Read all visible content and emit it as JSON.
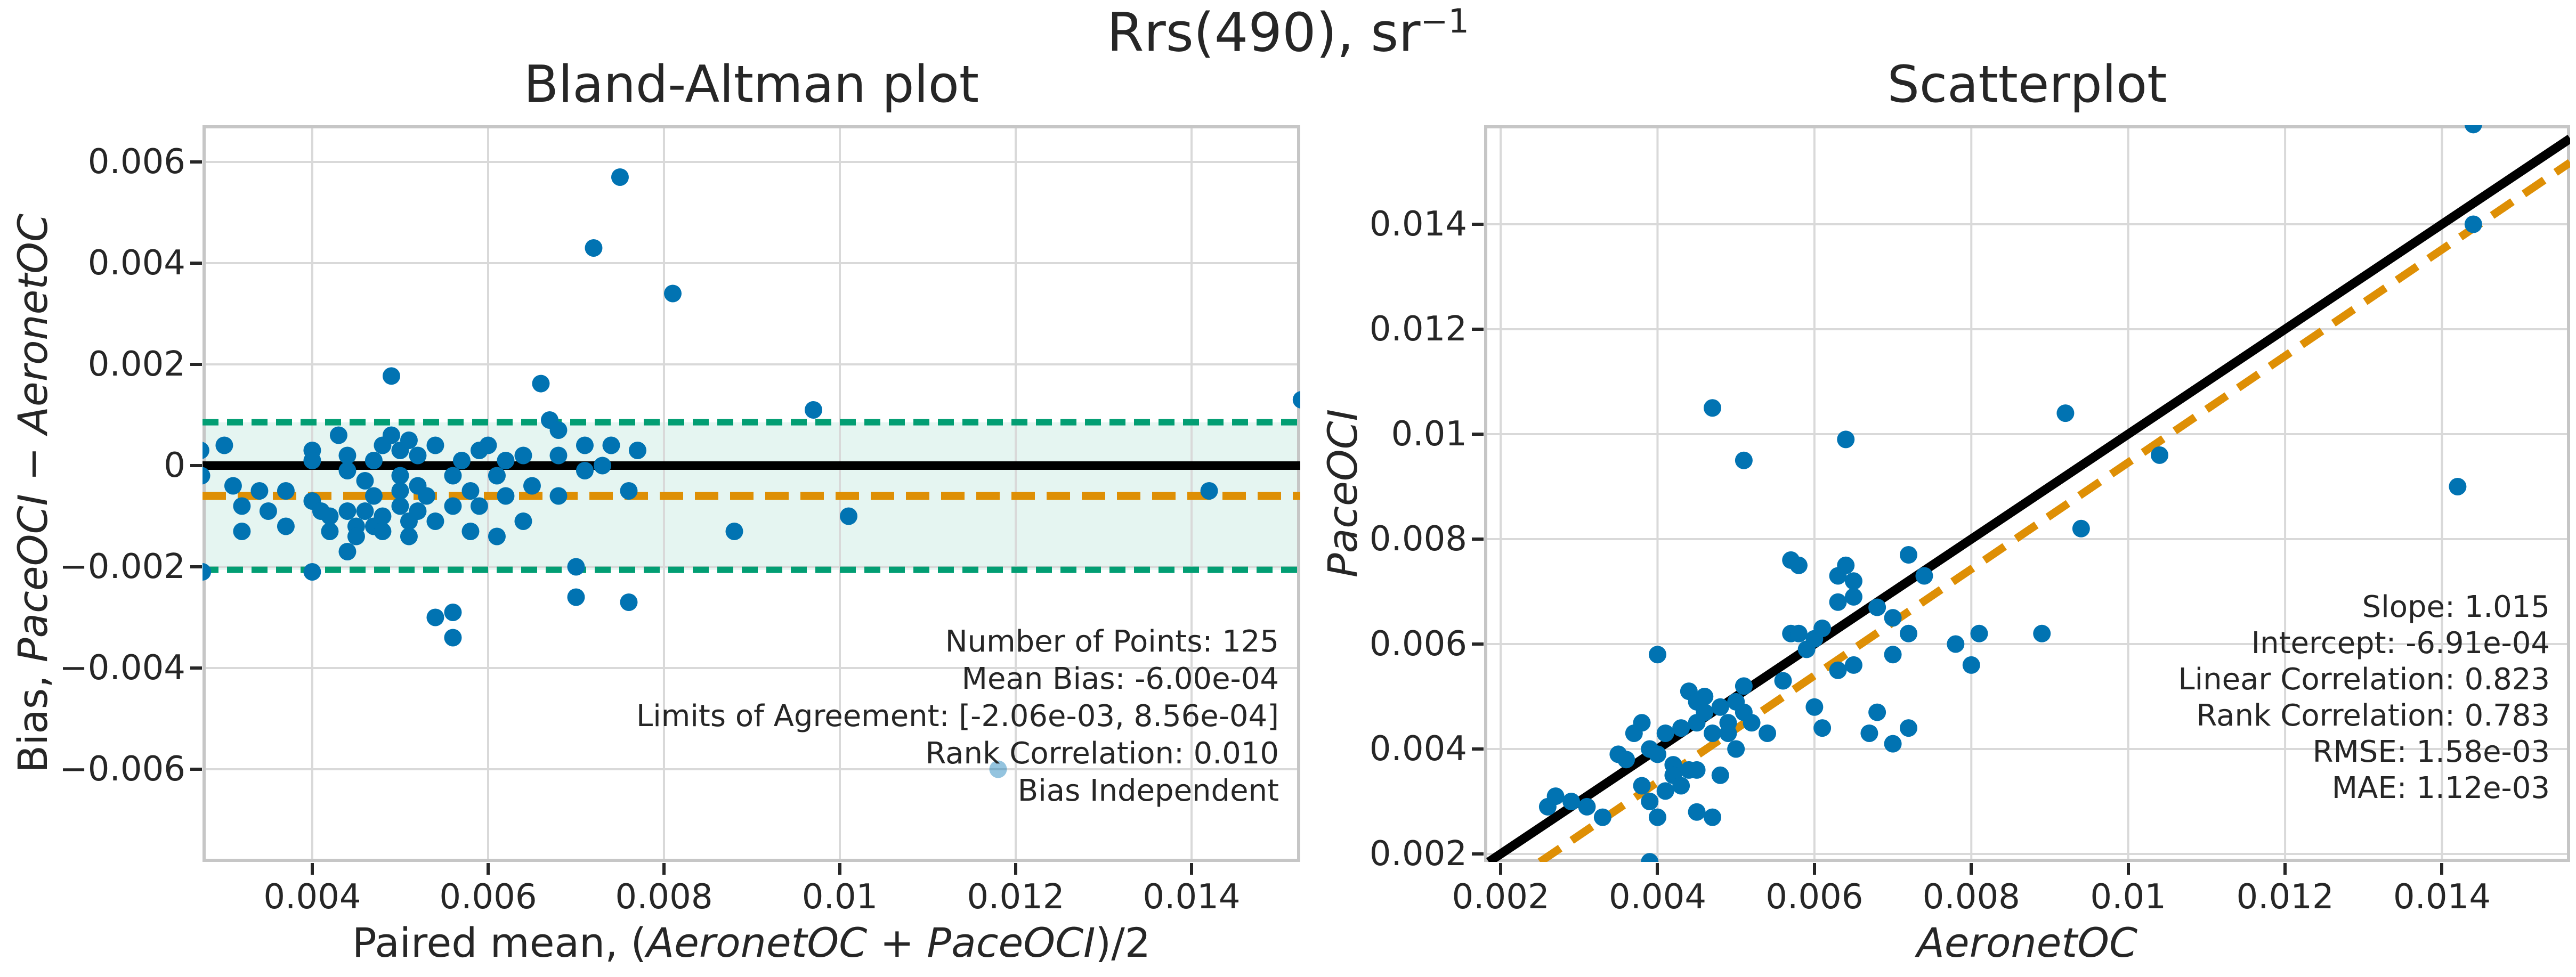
{
  "suptitle": {
    "base": "Rrs(490), sr",
    "sup": "−1"
  },
  "colors": {
    "points": "#0173B2",
    "faint_point": "rgba(1,115,178,0.42)",
    "identity": "#000000",
    "regression": "#DE8F05",
    "mean_bias": "#DE8F05",
    "loa": "#029E73",
    "loa_band": "rgba(2,158,115,0.10)",
    "grid": "#d9d9d9",
    "spine": "#c6c6c6",
    "text": "#262626"
  },
  "chart_data": [
    {
      "type": "scatter",
      "title": "Bland-Altman plot",
      "xlabel_segments": [
        {
          "text": "Paired mean, (",
          "italic": false
        },
        {
          "text": "AeronetOC",
          "italic": true
        },
        {
          "text": " + ",
          "italic": false
        },
        {
          "text": "PaceOCI",
          "italic": true
        },
        {
          "text": ")/2",
          "italic": false
        }
      ],
      "ylabel_segments": [
        {
          "text": "Bias, ",
          "italic": false
        },
        {
          "text": "PaceOCI",
          "italic": true
        },
        {
          "text": " − ",
          "italic": false
        },
        {
          "text": "AeronetOC",
          "italic": true
        }
      ],
      "xlim": [
        0.002752,
        0.015236
      ],
      "ylim": [
        -0.007832,
        0.006726
      ],
      "xticks": {
        "values": [
          0.004,
          0.006,
          0.008,
          0.01,
          0.012,
          0.014
        ],
        "labels": [
          "0.004",
          "0.006",
          "0.008",
          "0.01",
          "0.012",
          "0.014"
        ]
      },
      "yticks": {
        "values": [
          0.006,
          0.004,
          0.002,
          0,
          -0.002,
          -0.004,
          -0.006
        ],
        "labels": [
          "0.006",
          "0.004",
          "0.002",
          "0",
          "−0.002",
          "−0.004",
          "−0.006"
        ]
      },
      "grid": true,
      "legend": "none",
      "band": {
        "ymin": -0.00206,
        "ymax": 0.000856
      },
      "reference_lines": [
        {
          "name": "zero-bias-line",
          "y": 0,
          "color_key": "identity",
          "width": 16,
          "dash": null
        },
        {
          "name": "mean-bias-line",
          "y": -0.0006,
          "color_key": "mean_bias",
          "width": 15,
          "dash": "44 22"
        },
        {
          "name": "loa-upper-line",
          "y": 0.000856,
          "color_key": "loa",
          "width": 12,
          "dash": "30 16"
        },
        {
          "name": "loa-lower-line",
          "y": -0.00206,
          "color_key": "loa",
          "width": 12,
          "dash": "30 16"
        }
      ],
      "metrics": {
        "number_of_points": 125,
        "mean_bias": "-6.00e-04",
        "limits_of_agreement": [
          "-2.06e-03",
          "8.56e-04"
        ],
        "rank_correlation": 0.01,
        "bias_type": "Bias Independent"
      },
      "stats_lines": [
        "Number of Points: 125",
        "Mean Bias: -6.00e-04",
        "Limits of Agreement: [-2.06e-03, 8.56e-04]",
        "Rank Correlation: 0.010",
        "Bias Independent"
      ],
      "points": [
        [
          0.00273,
          0.0003
        ],
        [
          0.00274,
          -0.0002
        ],
        [
          0.00275,
          -0.0021
        ],
        [
          0.003,
          0.0004
        ],
        [
          0.0031,
          -0.0004
        ],
        [
          0.0032,
          -0.0008
        ],
        [
          0.0032,
          -0.0013
        ],
        [
          0.0034,
          -0.0005
        ],
        [
          0.0035,
          -0.0009
        ],
        [
          0.0037,
          -0.0012
        ],
        [
          0.0037,
          -0.0005
        ],
        [
          0.004,
          0.0003
        ],
        [
          0.004,
          0.0001
        ],
        [
          0.004,
          -0.0021
        ],
        [
          0.004,
          -0.0007
        ],
        [
          0.0041,
          -0.0009
        ],
        [
          0.0042,
          -0.0013
        ],
        [
          0.0042,
          -0.001
        ],
        [
          0.0043,
          0.0006
        ],
        [
          0.0044,
          0.0002
        ],
        [
          0.0044,
          -0.0001
        ],
        [
          0.0044,
          -0.0009
        ],
        [
          0.0045,
          -0.0012
        ],
        [
          0.0045,
          -0.0014
        ],
        [
          0.0044,
          -0.0017
        ],
        [
          0.0046,
          -0.0003
        ],
        [
          0.0046,
          -0.0009
        ],
        [
          0.0047,
          -0.0012
        ],
        [
          0.0047,
          0.0001
        ],
        [
          0.0047,
          -0.0006
        ],
        [
          0.0048,
          -0.001
        ],
        [
          0.0048,
          0.0004
        ],
        [
          0.0048,
          -0.0013
        ],
        [
          0.0049,
          0.00177
        ],
        [
          0.0049,
          0.0006
        ],
        [
          0.005,
          0.0003
        ],
        [
          0.005,
          -0.0002
        ],
        [
          0.005,
          -0.0005
        ],
        [
          0.005,
          -0.0008
        ],
        [
          0.0051,
          -0.0011
        ],
        [
          0.0051,
          0.0005
        ],
        [
          0.0051,
          -0.0014
        ],
        [
          0.0052,
          0.0002
        ],
        [
          0.0052,
          -0.0004
        ],
        [
          0.0052,
          -0.0009
        ],
        [
          0.0053,
          -0.0006
        ],
        [
          0.0054,
          -0.0011
        ],
        [
          0.0054,
          0.0004
        ],
        [
          0.0054,
          -0.003
        ],
        [
          0.0056,
          -0.0029
        ],
        [
          0.0056,
          -0.0034
        ],
        [
          0.0056,
          -0.0002
        ],
        [
          0.0056,
          -0.0008
        ],
        [
          0.0057,
          0.0001
        ],
        [
          0.0058,
          -0.0005
        ],
        [
          0.0058,
          -0.0013
        ],
        [
          0.0059,
          0.0003
        ],
        [
          0.0059,
          -0.0008
        ],
        [
          0.006,
          0.0004
        ],
        [
          0.0061,
          -0.0002
        ],
        [
          0.0061,
          -0.0014
        ],
        [
          0.0062,
          0.0001
        ],
        [
          0.0062,
          -0.0006
        ],
        [
          0.0064,
          0.0002
        ],
        [
          0.0064,
          -0.0011
        ],
        [
          0.0065,
          -0.0004
        ],
        [
          0.0066,
          0.00162
        ],
        [
          0.0067,
          0.0009
        ],
        [
          0.0068,
          0.0007
        ],
        [
          0.0068,
          0.0002
        ],
        [
          0.0068,
          -0.0006
        ],
        [
          0.007,
          -0.002
        ],
        [
          0.007,
          -0.0026
        ],
        [
          0.0076,
          -0.0027
        ],
        [
          0.0071,
          0.0004
        ],
        [
          0.0071,
          -0.0001
        ],
        [
          0.0072,
          0.0043
        ],
        [
          0.0073,
          0.0
        ],
        [
          0.0074,
          0.0004
        ],
        [
          0.0075,
          0.0057
        ],
        [
          0.0076,
          -0.0005
        ],
        [
          0.0077,
          0.0003
        ],
        [
          0.0081,
          0.0034
        ],
        [
          0.0088,
          -0.0013
        ],
        [
          0.0097,
          0.0011
        ],
        [
          0.0101,
          -0.001
        ],
        [
          0.0142,
          -0.0005
        ],
        [
          0.01525,
          0.0013
        ]
      ],
      "faint_points": [
        [
          0.0118,
          -0.006
        ]
      ]
    },
    {
      "type": "scatter",
      "title": "Scatterplot",
      "xlabel_segments": [
        {
          "text": "AeronetOC",
          "italic": true
        }
      ],
      "ylabel_segments": [
        {
          "text": "PaceOCI",
          "italic": true
        }
      ],
      "xlim": [
        0.001789,
        0.015634
      ],
      "ylim": [
        0.001848,
        0.015888
      ],
      "xticks": {
        "values": [
          0.002,
          0.004,
          0.006,
          0.008,
          0.01,
          0.012,
          0.014
        ],
        "labels": [
          "0.002",
          "0.004",
          "0.006",
          "0.008",
          "0.01",
          "0.012",
          "0.014"
        ]
      },
      "yticks": {
        "values": [
          0.014,
          0.012,
          0.01,
          0.008,
          0.006,
          0.004,
          0.002
        ],
        "labels": [
          "0.014",
          "0.012",
          "0.01",
          "0.008",
          "0.006",
          "0.004",
          "0.002"
        ]
      },
      "grid": true,
      "legend": "none",
      "fit": {
        "slope": 1.015,
        "intercept": -0.000691
      },
      "lines": [
        {
          "name": "identity-line",
          "x1": 0.001848,
          "y1": 0.001848,
          "x2": 0.015634,
          "y2": 0.015634,
          "color_key": "identity",
          "width": 17,
          "dash": null
        },
        {
          "name": "regression-line",
          "x1": 0.002501,
          "y1": 0.001848,
          "x2": 0.015634,
          "y2": 0.015177,
          "color_key": "regression",
          "width": 15,
          "dash": "46 26"
        }
      ],
      "metrics": {
        "slope": 1.015,
        "intercept": "-6.91e-04",
        "linear_correlation": 0.823,
        "rank_correlation": 0.783,
        "rmse": "1.58e-03",
        "mae": "1.12e-03"
      },
      "stats_lines": [
        "Slope: 1.015",
        "Intercept: -6.91e-04",
        "Linear Correlation: 0.823",
        "Rank Correlation: 0.783",
        "RMSE: 1.58e-03",
        "MAE: 1.12e-03"
      ],
      "points": [
        [
          0.0026,
          0.0029
        ],
        [
          0.0027,
          0.0031
        ],
        [
          0.0029,
          0.003
        ],
        [
          0.0031,
          0.0029
        ],
        [
          0.0033,
          0.0027
        ],
        [
          0.0035,
          0.0039
        ],
        [
          0.0036,
          0.0038
        ],
        [
          0.0037,
          0.0043
        ],
        [
          0.0038,
          0.0033
        ],
        [
          0.0038,
          0.0045
        ],
        [
          0.0039,
          0.004
        ],
        [
          0.0039,
          0.003
        ],
        [
          0.0039,
          0.00185
        ],
        [
          0.004,
          0.0039
        ],
        [
          0.004,
          0.0027
        ],
        [
          0.004,
          0.0058
        ],
        [
          0.0041,
          0.0043
        ],
        [
          0.0041,
          0.0032
        ],
        [
          0.0042,
          0.0037
        ],
        [
          0.0042,
          0.0035
        ],
        [
          0.0043,
          0.0033
        ],
        [
          0.0043,
          0.0044
        ],
        [
          0.0044,
          0.0051
        ],
        [
          0.0044,
          0.0036
        ],
        [
          0.0045,
          0.0049
        ],
        [
          0.0045,
          0.0045
        ],
        [
          0.0045,
          0.0036
        ],
        [
          0.0045,
          0.0028
        ],
        [
          0.0046,
          0.0047
        ],
        [
          0.0046,
          0.005
        ],
        [
          0.0047,
          0.0043
        ],
        [
          0.0047,
          0.0027
        ],
        [
          0.0047,
          0.0105
        ],
        [
          0.0048,
          0.0048
        ],
        [
          0.0048,
          0.0035
        ],
        [
          0.0049,
          0.0045
        ],
        [
          0.0049,
          0.0043
        ],
        [
          0.005,
          0.0049
        ],
        [
          0.005,
          0.004
        ],
        [
          0.0051,
          0.0052
        ],
        [
          0.0051,
          0.0047
        ],
        [
          0.0051,
          0.0095
        ],
        [
          0.0052,
          0.0045
        ],
        [
          0.0054,
          0.0043
        ],
        [
          0.0056,
          0.0053
        ],
        [
          0.0057,
          0.0062
        ],
        [
          0.0057,
          0.0076
        ],
        [
          0.0058,
          0.0075
        ],
        [
          0.0058,
          0.0062
        ],
        [
          0.0059,
          0.0059
        ],
        [
          0.006,
          0.0061
        ],
        [
          0.006,
          0.0048
        ],
        [
          0.0061,
          0.0063
        ],
        [
          0.0061,
          0.0044
        ],
        [
          0.0063,
          0.0073
        ],
        [
          0.0063,
          0.0068
        ],
        [
          0.0063,
          0.0055
        ],
        [
          0.0064,
          0.0099
        ],
        [
          0.0064,
          0.0075
        ],
        [
          0.0065,
          0.0072
        ],
        [
          0.0065,
          0.0069
        ],
        [
          0.0065,
          0.0056
        ],
        [
          0.0067,
          0.0043
        ],
        [
          0.0068,
          0.0047
        ],
        [
          0.0068,
          0.0067
        ],
        [
          0.007,
          0.0065
        ],
        [
          0.007,
          0.0058
        ],
        [
          0.007,
          0.0041
        ],
        [
          0.0072,
          0.0062
        ],
        [
          0.0072,
          0.0044
        ],
        [
          0.0072,
          0.0077
        ],
        [
          0.0074,
          0.0073
        ],
        [
          0.0078,
          0.006
        ],
        [
          0.008,
          0.0056
        ],
        [
          0.0081,
          0.0062
        ],
        [
          0.0089,
          0.0062
        ],
        [
          0.0092,
          0.0104
        ],
        [
          0.0094,
          0.0082
        ],
        [
          0.0104,
          0.0096
        ],
        [
          0.0142,
          0.009
        ],
        [
          0.0144,
          0.014
        ],
        [
          0.0144,
          0.0159
        ]
      ],
      "faint_points": []
    }
  ]
}
